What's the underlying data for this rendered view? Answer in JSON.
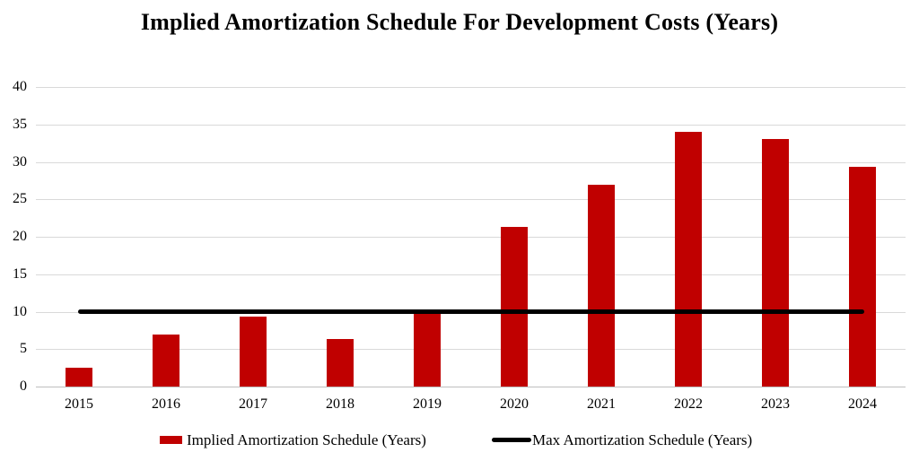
{
  "title": "Implied Amortization Schedule For Development Costs (Years)",
  "chart_data": {
    "type": "bar",
    "title": "Implied Amortization Schedule For Development Costs (Years)",
    "categories": [
      "2015",
      "2016",
      "2017",
      "2018",
      "2019",
      "2020",
      "2021",
      "2022",
      "2023",
      "2024"
    ],
    "series": [
      {
        "name": "Implied Amortization Schedule (Years)",
        "type": "bar",
        "color": "#C00000",
        "values": [
          2.5,
          7.0,
          9.4,
          6.3,
          9.9,
          21.3,
          27.0,
          34.0,
          33.0,
          29.3
        ]
      },
      {
        "name": "Max Amortization Schedule (Years)",
        "type": "line",
        "color": "#000000",
        "values": [
          10,
          10,
          10,
          10,
          10,
          10,
          10,
          10,
          10,
          10
        ]
      }
    ],
    "xlabel": "",
    "ylabel": "",
    "ylim": [
      0,
      40
    ],
    "yticks": [
      0,
      5,
      10,
      15,
      20,
      25,
      30,
      35,
      40
    ],
    "grid": true,
    "legend_position": "bottom"
  },
  "colors": {
    "bar": "#C00000",
    "max_line": "#000000",
    "gridline": "#D9D9D9",
    "axis_line": "#BFBFBF",
    "text": "#000000"
  }
}
